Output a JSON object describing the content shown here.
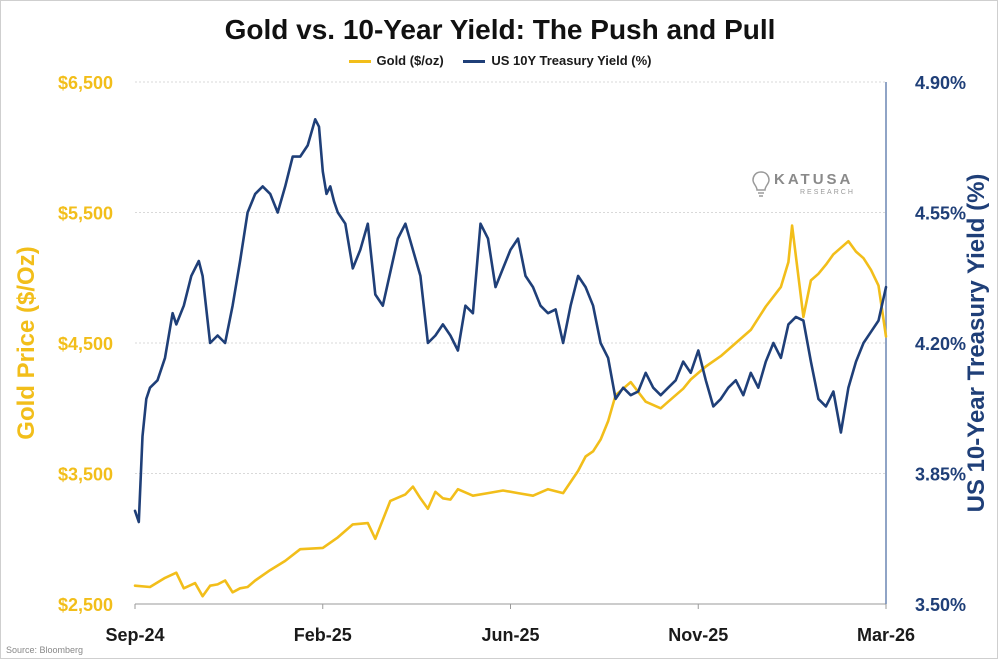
{
  "title": "Gold vs. 10-Year Yield: The Push and Pull",
  "source": "Source: Bloomberg",
  "logo": {
    "name": "KATUSA",
    "sub": "RESEARCH"
  },
  "colors": {
    "gold": "#F2BE1A",
    "yield": "#1F3F78",
    "grid": "#d9d9d9",
    "axis_right": "#6c86b3"
  },
  "chart_data": {
    "type": "line",
    "title": "Gold vs. 10-Year Yield: The Push and Pull",
    "xlabel": "",
    "x_ticks": [
      "Sep-24",
      "Feb-25",
      "Jun-25",
      "Nov-25",
      "Mar-26"
    ],
    "x_range": [
      0,
      1
    ],
    "y_left": {
      "label": "Gold Price ($/Oz)",
      "range": [
        2500,
        6500
      ],
      "ticks": [
        2500,
        3500,
        4500,
        5500,
        6500
      ],
      "tick_labels": [
        "$2,500",
        "$3,500",
        "$4,500",
        "$5,500",
        "$6,500"
      ]
    },
    "y_right": {
      "label": "US 10-Year Treasury Yield (%)",
      "range": [
        3.5,
        4.9
      ],
      "ticks": [
        3.5,
        3.85,
        4.2,
        4.55,
        4.9
      ],
      "tick_labels": [
        "3.50%",
        "3.85%",
        "4.20%",
        "4.55%",
        "4.90%"
      ]
    },
    "legend_position": "top-center",
    "grid": true,
    "series": [
      {
        "name": "Gold ($/oz)",
        "axis": "left",
        "x": [
          0,
          0.02,
          0.04,
          0.055,
          0.065,
          0.08,
          0.09,
          0.1,
          0.11,
          0.12,
          0.13,
          0.14,
          0.15,
          0.16,
          0.18,
          0.2,
          0.22,
          0.25,
          0.27,
          0.29,
          0.31,
          0.32,
          0.34,
          0.36,
          0.37,
          0.38,
          0.39,
          0.4,
          0.41,
          0.42,
          0.43,
          0.45,
          0.47,
          0.49,
          0.51,
          0.53,
          0.55,
          0.57,
          0.59,
          0.6,
          0.61,
          0.62,
          0.63,
          0.64,
          0.66,
          0.68,
          0.7,
          0.71,
          0.72,
          0.73,
          0.74,
          0.76,
          0.78,
          0.8,
          0.82,
          0.84,
          0.86,
          0.87,
          0.875,
          0.89,
          0.9,
          0.91,
          0.92,
          0.93,
          0.95,
          0.96,
          0.97,
          0.98,
          0.99,
          1.0
        ],
        "values": [
          2640,
          2630,
          2700,
          2740,
          2620,
          2660,
          2560,
          2640,
          2650,
          2680,
          2590,
          2620,
          2630,
          2680,
          2760,
          2830,
          2920,
          2930,
          3010,
          3110,
          3120,
          3000,
          3290,
          3340,
          3400,
          3310,
          3230,
          3360,
          3310,
          3300,
          3380,
          3330,
          3350,
          3370,
          3350,
          3330,
          3380,
          3350,
          3520,
          3630,
          3670,
          3760,
          3900,
          4100,
          4200,
          4050,
          4000,
          4050,
          4100,
          4150,
          4220,
          4320,
          4400,
          4500,
          4600,
          4780,
          4930,
          5120,
          5400,
          4700,
          4980,
          5030,
          5100,
          5180,
          5280,
          5200,
          5150,
          5060,
          4940,
          4550
        ]
      },
      {
        "name": "US 10Y Treasury Yield (%)",
        "axis": "right",
        "x": [
          0,
          0.005,
          0.01,
          0.015,
          0.02,
          0.03,
          0.04,
          0.05,
          0.055,
          0.065,
          0.075,
          0.085,
          0.09,
          0.1,
          0.11,
          0.12,
          0.13,
          0.14,
          0.15,
          0.16,
          0.17,
          0.18,
          0.19,
          0.2,
          0.21,
          0.22,
          0.23,
          0.24,
          0.245,
          0.25,
          0.255,
          0.26,
          0.265,
          0.27,
          0.28,
          0.29,
          0.3,
          0.31,
          0.32,
          0.33,
          0.35,
          0.36,
          0.38,
          0.39,
          0.4,
          0.41,
          0.42,
          0.43,
          0.44,
          0.45,
          0.46,
          0.47,
          0.48,
          0.49,
          0.5,
          0.51,
          0.52,
          0.53,
          0.54,
          0.55,
          0.56,
          0.57,
          0.58,
          0.59,
          0.6,
          0.61,
          0.62,
          0.63,
          0.64,
          0.65,
          0.66,
          0.67,
          0.68,
          0.69,
          0.7,
          0.71,
          0.72,
          0.73,
          0.74,
          0.75,
          0.76,
          0.77,
          0.78,
          0.79,
          0.8,
          0.81,
          0.82,
          0.83,
          0.84,
          0.85,
          0.86,
          0.87,
          0.88,
          0.89,
          0.9,
          0.91,
          0.92,
          0.93,
          0.94,
          0.95,
          0.96,
          0.97,
          0.98,
          0.99,
          1.0
        ],
        "values": [
          3.75,
          3.72,
          3.95,
          4.05,
          4.08,
          4.1,
          4.16,
          4.28,
          4.25,
          4.3,
          4.38,
          4.42,
          4.38,
          4.2,
          4.22,
          4.2,
          4.3,
          4.42,
          4.55,
          4.6,
          4.62,
          4.6,
          4.55,
          4.62,
          4.7,
          4.7,
          4.73,
          4.8,
          4.78,
          4.66,
          4.6,
          4.62,
          4.58,
          4.55,
          4.52,
          4.4,
          4.45,
          4.52,
          4.33,
          4.3,
          4.48,
          4.52,
          4.38,
          4.2,
          4.22,
          4.25,
          4.22,
          4.18,
          4.3,
          4.28,
          4.52,
          4.48,
          4.35,
          4.4,
          4.45,
          4.48,
          4.38,
          4.35,
          4.3,
          4.28,
          4.29,
          4.2,
          4.3,
          4.38,
          4.35,
          4.3,
          4.2,
          4.16,
          4.05,
          4.08,
          4.06,
          4.07,
          4.12,
          4.08,
          4.06,
          4.08,
          4.1,
          4.15,
          4.12,
          4.18,
          4.1,
          4.03,
          4.05,
          4.08,
          4.1,
          4.06,
          4.12,
          4.08,
          4.15,
          4.2,
          4.16,
          4.25,
          4.27,
          4.26,
          4.15,
          4.05,
          4.03,
          4.07,
          3.96,
          4.08,
          4.15,
          4.2,
          4.23,
          4.26,
          4.35
        ]
      }
    ]
  }
}
